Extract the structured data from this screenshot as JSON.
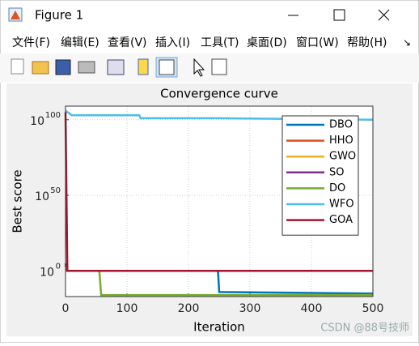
{
  "window": {
    "title": "Figure 1",
    "menu": [
      "文件(F)",
      "编辑(E)",
      "查看(V)",
      "插入(I)",
      "工具(T)",
      "桌面(D)",
      "窗口(W)",
      "帮助(H)"
    ],
    "watermark": "CSDN @88号技师"
  },
  "chart_data": {
    "type": "line",
    "title": "Convergence curve",
    "x_label": "Iteration",
    "y_label": "Best score",
    "log_y": true,
    "grid": true,
    "legend": "upper right",
    "xlim": [
      0,
      500
    ],
    "xticks": [
      0,
      100,
      200,
      300,
      400,
      500
    ],
    "ylim": [
      1e-17,
      1e+109
    ],
    "yticks": [
      {
        "value": 1,
        "label": "10",
        "exponent": "0"
      },
      {
        "value": 1e+50,
        "label": "10",
        "exponent": "50"
      },
      {
        "value": 1e+100,
        "label": "10",
        "exponent": "100"
      }
    ],
    "series": [
      {
        "name": "DBO",
        "color": "#0072BD",
        "x": [
          0,
          3,
          248,
          250,
          500
        ],
        "values": [
          100000.0,
          1,
          1,
          1e-14,
          1e-15
        ]
      },
      {
        "name": "HHO",
        "color": "#D95319",
        "x": [
          0,
          3,
          500
        ],
        "values": [
          100000.0,
          1,
          1
        ]
      },
      {
        "name": "GWO",
        "color": "#EDB120",
        "x": [
          0,
          3,
          500
        ],
        "values": [
          10000.0,
          1,
          1
        ]
      },
      {
        "name": "SO",
        "color": "#7E2F8E",
        "x": [
          0,
          3,
          500
        ],
        "values": [
          10000.0,
          1,
          1
        ]
      },
      {
        "name": "DO",
        "color": "#77AC30",
        "x": [
          0,
          3,
          55,
          58,
          500
        ],
        "values": [
          1000.0,
          1,
          1,
          1e-16,
          1e-16
        ]
      },
      {
        "name": "WFO",
        "color": "#4DBEEE",
        "x": [
          0,
          10,
          120,
          122,
          250,
          500
        ],
        "values": [
          1e+106,
          1e+103,
          1e+103,
          1e+101,
          1e+101,
          1e+100
        ]
      },
      {
        "name": "GOA",
        "color": "#A2142F",
        "x": [
          0,
          3,
          500
        ],
        "values": [
          1e+105,
          1,
          1
        ]
      }
    ]
  }
}
